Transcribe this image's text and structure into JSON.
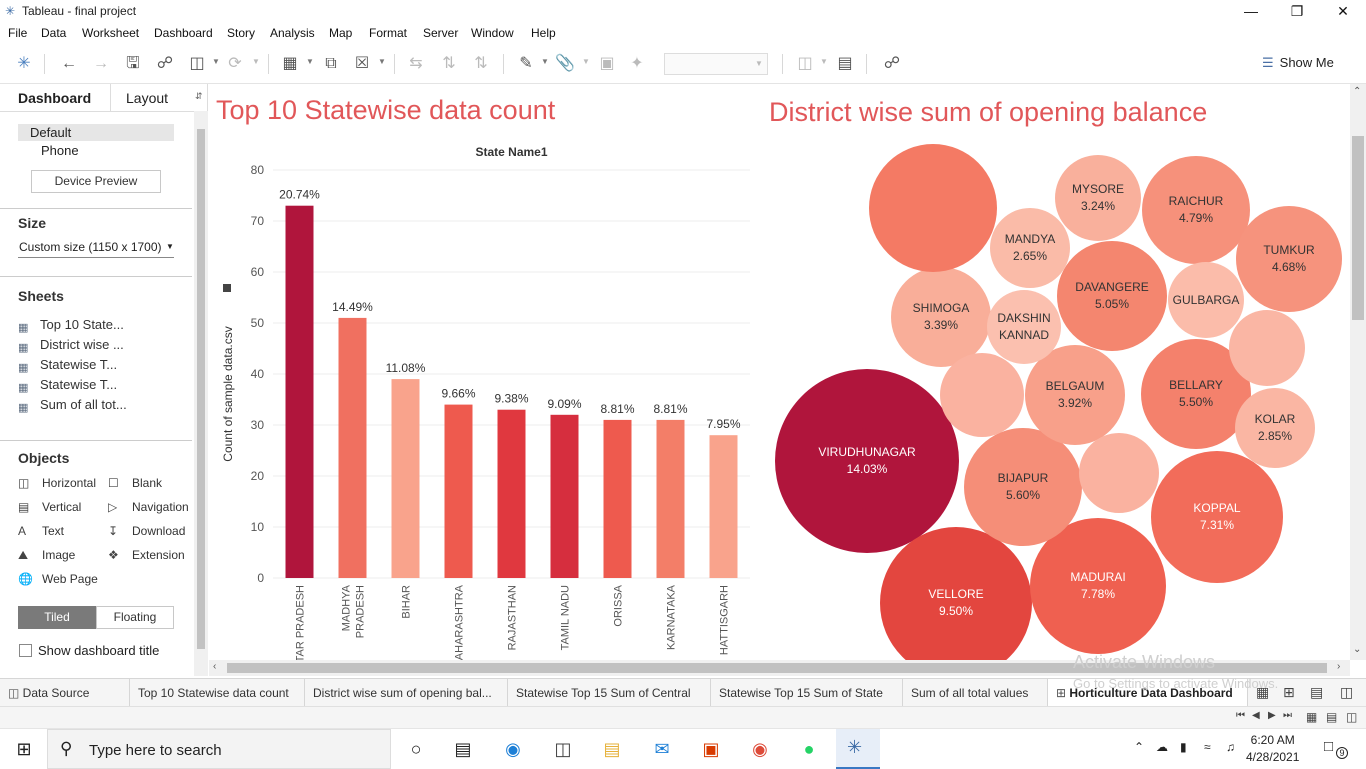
{
  "window": {
    "title": "Tableau - final project"
  },
  "menu": [
    "File",
    "Data",
    "Worksheet",
    "Dashboard",
    "Story",
    "Analysis",
    "Map",
    "Format",
    "Server",
    "Window",
    "Help"
  ],
  "toolbar": {
    "show_me": "Show Me"
  },
  "left_panel": {
    "tab_dashboard": "Dashboard",
    "tab_layout": "Layout",
    "device_default": "Default",
    "device_phone": "Phone",
    "device_preview": "Device Preview",
    "size_heading": "Size",
    "size_value": "Custom size (1150 x 1700)",
    "sheets_heading": "Sheets",
    "sheets": [
      "Top 10 State...",
      "District wise ...",
      "Statewise T...",
      "Statewise T...",
      "Sum of all tot..."
    ],
    "objects_heading": "Objects",
    "objects": {
      "horizontal": "Horizontal",
      "blank": "Blank",
      "vertical": "Vertical",
      "navigation": "Navigation",
      "text": "Text",
      "download": "Download",
      "image": "Image",
      "extension": "Extension",
      "web_page": "Web Page"
    },
    "tiled": "Tiled",
    "floating": "Floating",
    "show_title": "Show dashboard title"
  },
  "dashboard": {
    "bar_title": "Top 10 Statewise data count",
    "bubble_title": "District wise sum of opening balance"
  },
  "chart_data": [
    {
      "type": "bar",
      "title": "State Name1",
      "ylabel": "Count of sample data.csv",
      "xlabel": "",
      "ylim": [
        0,
        80
      ],
      "yticks": [
        0,
        10,
        20,
        30,
        40,
        50,
        60,
        70,
        80
      ],
      "grid": true,
      "categories": [
        "UTTAR PRADESH",
        "MADHYA PRADESH",
        "BIHAR",
        "MAHARASHTRA",
        "RAJASTHAN",
        "TAMIL NADU",
        "ORISSA",
        "KARNATAKA",
        "CHHATTISGARH"
      ],
      "category_labels": [
        "TAR PRADESH",
        "MADHYA PRADESH",
        "BIHAR",
        "AHARASHTRA",
        "RAJASTHAN",
        "TAMIL NADU",
        "ORISSA",
        "KARNATAKA",
        "HATTISGARH"
      ],
      "values": [
        73,
        51,
        39,
        34,
        33,
        32,
        31,
        31,
        28
      ],
      "data_labels": [
        "20.74%",
        "14.49%",
        "11.08%",
        "9.66%",
        "9.38%",
        "9.09%",
        "8.81%",
        "8.81%",
        "7.95%"
      ],
      "colors": [
        "#b0153c",
        "#f07060",
        "#f9a38c",
        "#ee5a4e",
        "#e0383f",
        "#d62e3e",
        "#ee5a4e",
        "#f37e68",
        "#f9a38c"
      ]
    },
    {
      "type": "bubble",
      "items": [
        {
          "label": "VIRUDHUNAGAR",
          "value": "14.03%",
          "color": "#b0153c"
        },
        {
          "label": "VELLORE",
          "value": "9.50%",
          "color": "#e3463f"
        },
        {
          "label": "MADURAI",
          "value": "7.78%",
          "color": "#ef6050"
        },
        {
          "label": "KOPPAL",
          "value": "7.31%",
          "color": "#f26c5a"
        },
        {
          "label": "BIJAPUR",
          "value": "5.60%",
          "color": "#f58e78"
        },
        {
          "label": "BELLARY",
          "value": "5.50%",
          "color": "#f4816c"
        },
        {
          "label": "DAVANGERE",
          "value": "5.05%",
          "color": "#f4866f"
        },
        {
          "label": "RAICHUR",
          "value": "4.79%",
          "color": "#f6917b"
        },
        {
          "label": "TUMKUR",
          "value": "4.68%",
          "color": "#f6937d"
        },
        {
          "label": "BELGAUM",
          "value": "3.92%",
          "color": "#f8a08a"
        },
        {
          "label": "SHIMOGA",
          "value": "3.39%",
          "color": "#f9ae99"
        },
        {
          "label": "MYSORE",
          "value": "3.24%",
          "color": "#f9b09c"
        },
        {
          "label": "KOLAR",
          "value": "2.85%",
          "color": "#fab6a3"
        },
        {
          "label": "MANDYA",
          "value": "2.65%",
          "color": "#fabba8"
        },
        {
          "label": "DAKSHIN KANNAD",
          "value": "",
          "color": "#fbc0af"
        },
        {
          "label": "GULBARGA",
          "value": "",
          "color": "#fbbcaa"
        },
        {
          "label": "",
          "value": "",
          "color": "#f47a64"
        },
        {
          "label": "",
          "value": "",
          "color": "#fab2a0"
        },
        {
          "label": "",
          "value": "",
          "color": "#fab2a0"
        },
        {
          "label": "",
          "value": "",
          "color": "#fab6a4"
        }
      ]
    }
  ],
  "sheet_tabs": [
    "Data Source",
    "Top 10 Statewise data count",
    "District wise sum of opening bal...",
    "Statewise Top 15  Sum of Central",
    "Statewise Top 15  Sum of State",
    "Sum of all total values",
    "Horticulture Data Dashboard"
  ],
  "watermark": {
    "line1": "Activate Windows",
    "line2": "Go to Settings to activate Windows."
  },
  "taskbar": {
    "search_placeholder": "Type here to search",
    "time": "6:20 AM",
    "date": "4/28/2021",
    "notifications": "9"
  }
}
